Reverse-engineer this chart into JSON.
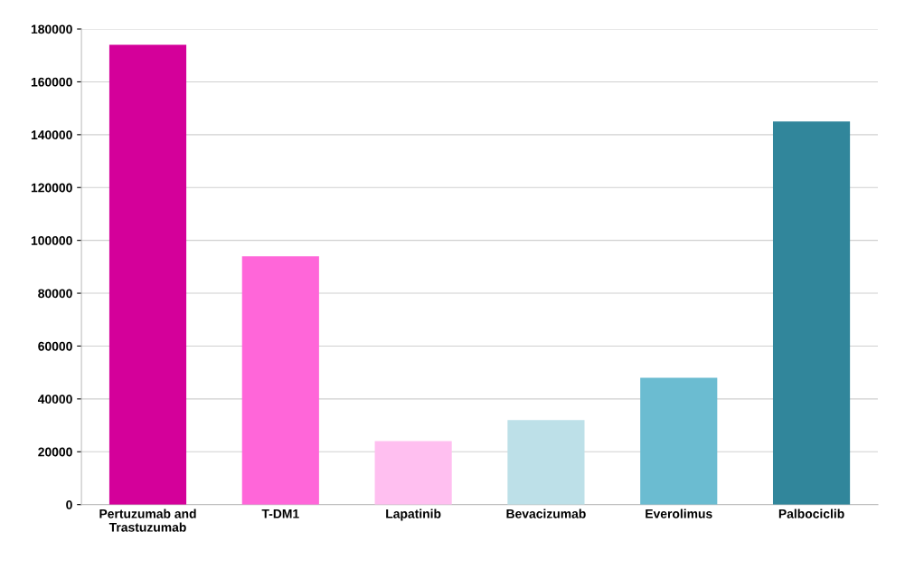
{
  "chart_data": {
    "type": "bar",
    "categories": [
      "Pertuzumab and\nTrastuzumab",
      "T-DM1",
      "Lapatinib",
      "Bevacizumab",
      "Everolimus",
      "Palbociclib"
    ],
    "values": [
      174000,
      94000,
      24000,
      32000,
      48000,
      145000
    ],
    "colors": [
      "#d4009a",
      "#ff66d9",
      "#ffbff0",
      "#bde0e8",
      "#6bbcd1",
      "#31869b"
    ],
    "ylim": [
      0,
      180000
    ],
    "yticks": [
      0,
      20000,
      40000,
      60000,
      80000,
      100000,
      120000,
      140000,
      160000,
      180000
    ],
    "grid": "y",
    "legend": false
  }
}
